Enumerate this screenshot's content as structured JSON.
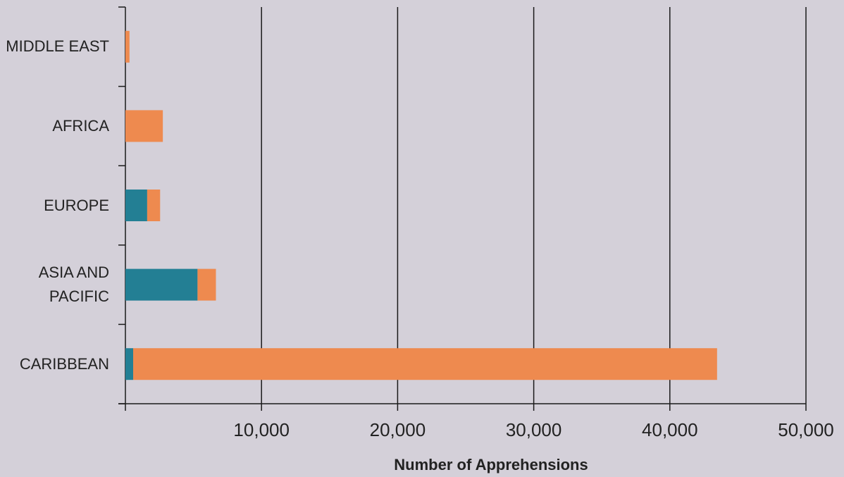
{
  "chart_data": {
    "type": "bar",
    "orientation": "horizontal",
    "stacked": true,
    "categories": [
      "MIDDLE EAST",
      "AFRICA",
      "EUROPE",
      "ASIA AND PACIFIC",
      "CARIBBEAN"
    ],
    "series": [
      {
        "color": "#237f94",
        "values": [
          0,
          0,
          1600,
          5300,
          570
        ]
      },
      {
        "color": "#ee8a4f",
        "values": [
          300,
          2750,
          950,
          1350,
          42900
        ]
      }
    ],
    "xlim": [
      0,
      50000
    ],
    "xticks": [
      {
        "value": 10000,
        "label": "10,000"
      },
      {
        "value": 20000,
        "label": "20,000"
      },
      {
        "value": 30000,
        "label": "30,000"
      },
      {
        "value": 40000,
        "label": "40,000"
      },
      {
        "value": 50000,
        "label": "50,000"
      }
    ],
    "xlabel": "Number of Apprehensions",
    "grid": true
  }
}
